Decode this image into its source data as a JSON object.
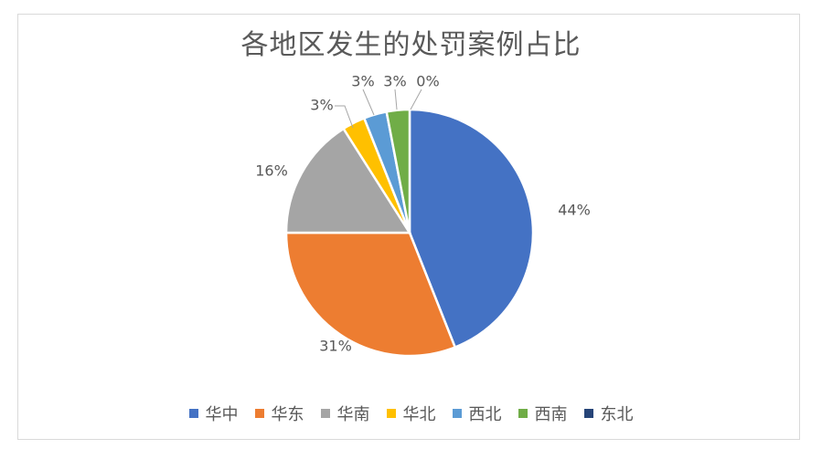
{
  "chart_data": {
    "type": "pie",
    "title": "各地区发生的处罚案例占比",
    "categories": [
      "华中",
      "华东",
      "华南",
      "华北",
      "西北",
      "西南",
      "东北"
    ],
    "values": [
      44,
      31,
      16,
      3,
      3,
      3,
      0
    ],
    "labels": [
      "44%",
      "31%",
      "16%",
      "3%",
      "3%",
      "3%",
      "0%"
    ],
    "colors": [
      "#4472C4",
      "#ED7D31",
      "#A5A5A5",
      "#FFC000",
      "#5B9BD5",
      "#70AD47",
      "#264478"
    ],
    "legend_position": "bottom",
    "start_angle_deg": 0,
    "direction": "clockwise"
  }
}
